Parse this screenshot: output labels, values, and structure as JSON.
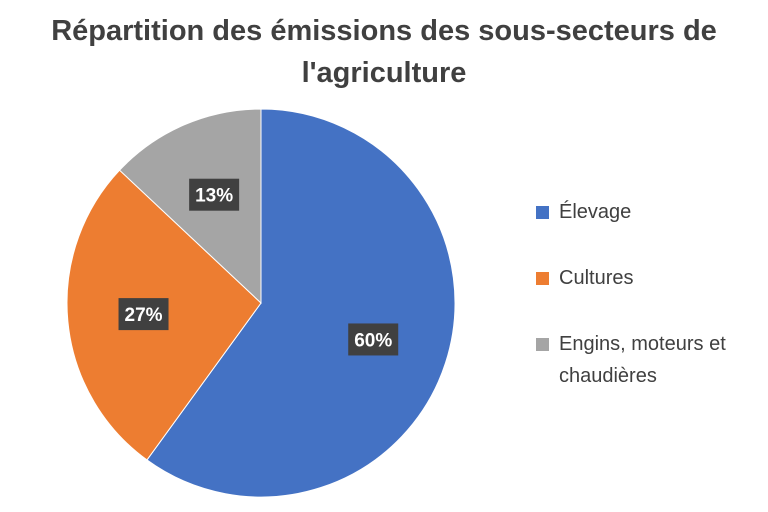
{
  "chart_data": {
    "type": "pie",
    "title_lines": [
      "Répartition des émissions des sous-secteurs de",
      "l'agriculture"
    ],
    "slices": [
      {
        "name": "Élevage",
        "value": 60,
        "label": "60%",
        "color": "#4472C4"
      },
      {
        "name": "Cultures",
        "value": 27,
        "label": "27%",
        "color": "#ED7D31"
      },
      {
        "name": "Engins, moteurs et chaudières",
        "value": 13,
        "label": "13%",
        "color": "#A5A5A5"
      }
    ],
    "legend": {
      "position": "right",
      "items": [
        "Élevage",
        "Cultures",
        "Engins, moteurs et chaudières"
      ]
    }
  }
}
